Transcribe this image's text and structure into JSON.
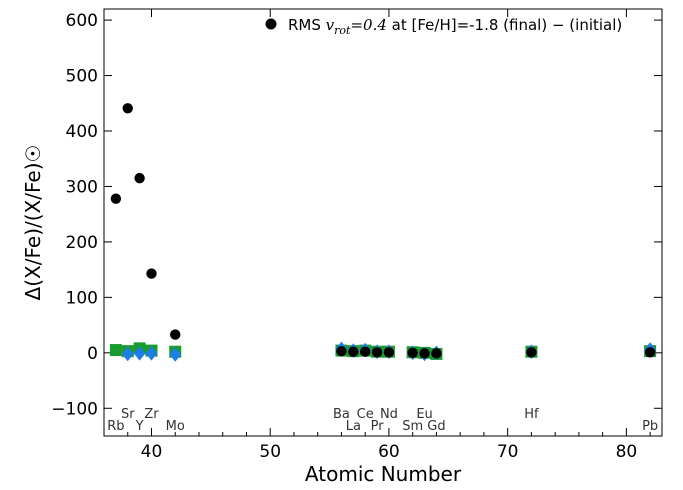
{
  "chart_data": {
    "type": "scatter",
    "xlabel": "Atomic Number",
    "ylabel": "Δ(X/Fe)/(X/Fe)☉",
    "xlim": [
      36,
      83
    ],
    "ylim": [
      -150,
      620
    ],
    "x_ticks": [
      40,
      50,
      60,
      70,
      80
    ],
    "y_ticks": [
      -100,
      0,
      100,
      200,
      300,
      400,
      500,
      600
    ],
    "y_tick_labels": [
      "−100",
      "0",
      "100",
      "200",
      "300",
      "400",
      "500",
      "600"
    ],
    "legend": {
      "placement": "top-right",
      "prefix": "RMS ",
      "math": "v",
      "math_sub": "rot",
      "math_eq": "=0.4",
      "suffix": " at [Fe/H]=-1.8 (final) − (initial)"
    },
    "element_labels": [
      {
        "z": 37,
        "symbol": "Rb",
        "row": "lower"
      },
      {
        "z": 38,
        "symbol": "Sr",
        "row": "upper"
      },
      {
        "z": 39,
        "symbol": "Y",
        "row": "lower"
      },
      {
        "z": 40,
        "symbol": "Zr",
        "row": "upper"
      },
      {
        "z": 42,
        "symbol": "Mo",
        "row": "lower"
      },
      {
        "z": 56,
        "symbol": "Ba",
        "row": "upper"
      },
      {
        "z": 57,
        "symbol": "La",
        "row": "lower"
      },
      {
        "z": 58,
        "symbol": "Ce",
        "row": "upper"
      },
      {
        "z": 59,
        "symbol": "Pr",
        "row": "lower"
      },
      {
        "z": 60,
        "symbol": "Nd",
        "row": "upper"
      },
      {
        "z": 62,
        "symbol": "Sm",
        "row": "lower"
      },
      {
        "z": 63,
        "symbol": "Eu",
        "row": "upper"
      },
      {
        "z": 64,
        "symbol": "Gd",
        "row": "lower"
      },
      {
        "z": 72,
        "symbol": "Hf",
        "row": "upper"
      },
      {
        "z": 82,
        "symbol": "Pb",
        "row": "lower"
      }
    ],
    "series": [
      {
        "marker": "square",
        "color": "#1a9b2e",
        "x": [
          37,
          38,
          39,
          40,
          42,
          56,
          57,
          58,
          59,
          60,
          62,
          63,
          64,
          72,
          82
        ],
        "y": [
          5,
          3,
          8,
          4,
          2,
          4,
          3,
          4,
          2,
          2,
          1,
          0,
          -2,
          2,
          3
        ]
      },
      {
        "marker": "diamond",
        "color": "#1e7ee8",
        "x": [
          38,
          39,
          40,
          42,
          56,
          57,
          58,
          59,
          60,
          62,
          63,
          64,
          72,
          82
        ],
        "y": [
          -2,
          -1,
          -1,
          -3,
          7,
          4,
          5,
          2,
          2,
          0,
          -2,
          0,
          2,
          6
        ]
      },
      {
        "marker": "circle",
        "color": "#000000",
        "legend": true,
        "x": [
          37,
          38,
          39,
          40,
          42,
          56,
          57,
          58,
          59,
          60,
          62,
          63,
          64,
          72,
          82
        ],
        "y": [
          278,
          441,
          315,
          143,
          33,
          3,
          2,
          2,
          1,
          1,
          0,
          -1,
          -1,
          1,
          1
        ]
      }
    ]
  }
}
